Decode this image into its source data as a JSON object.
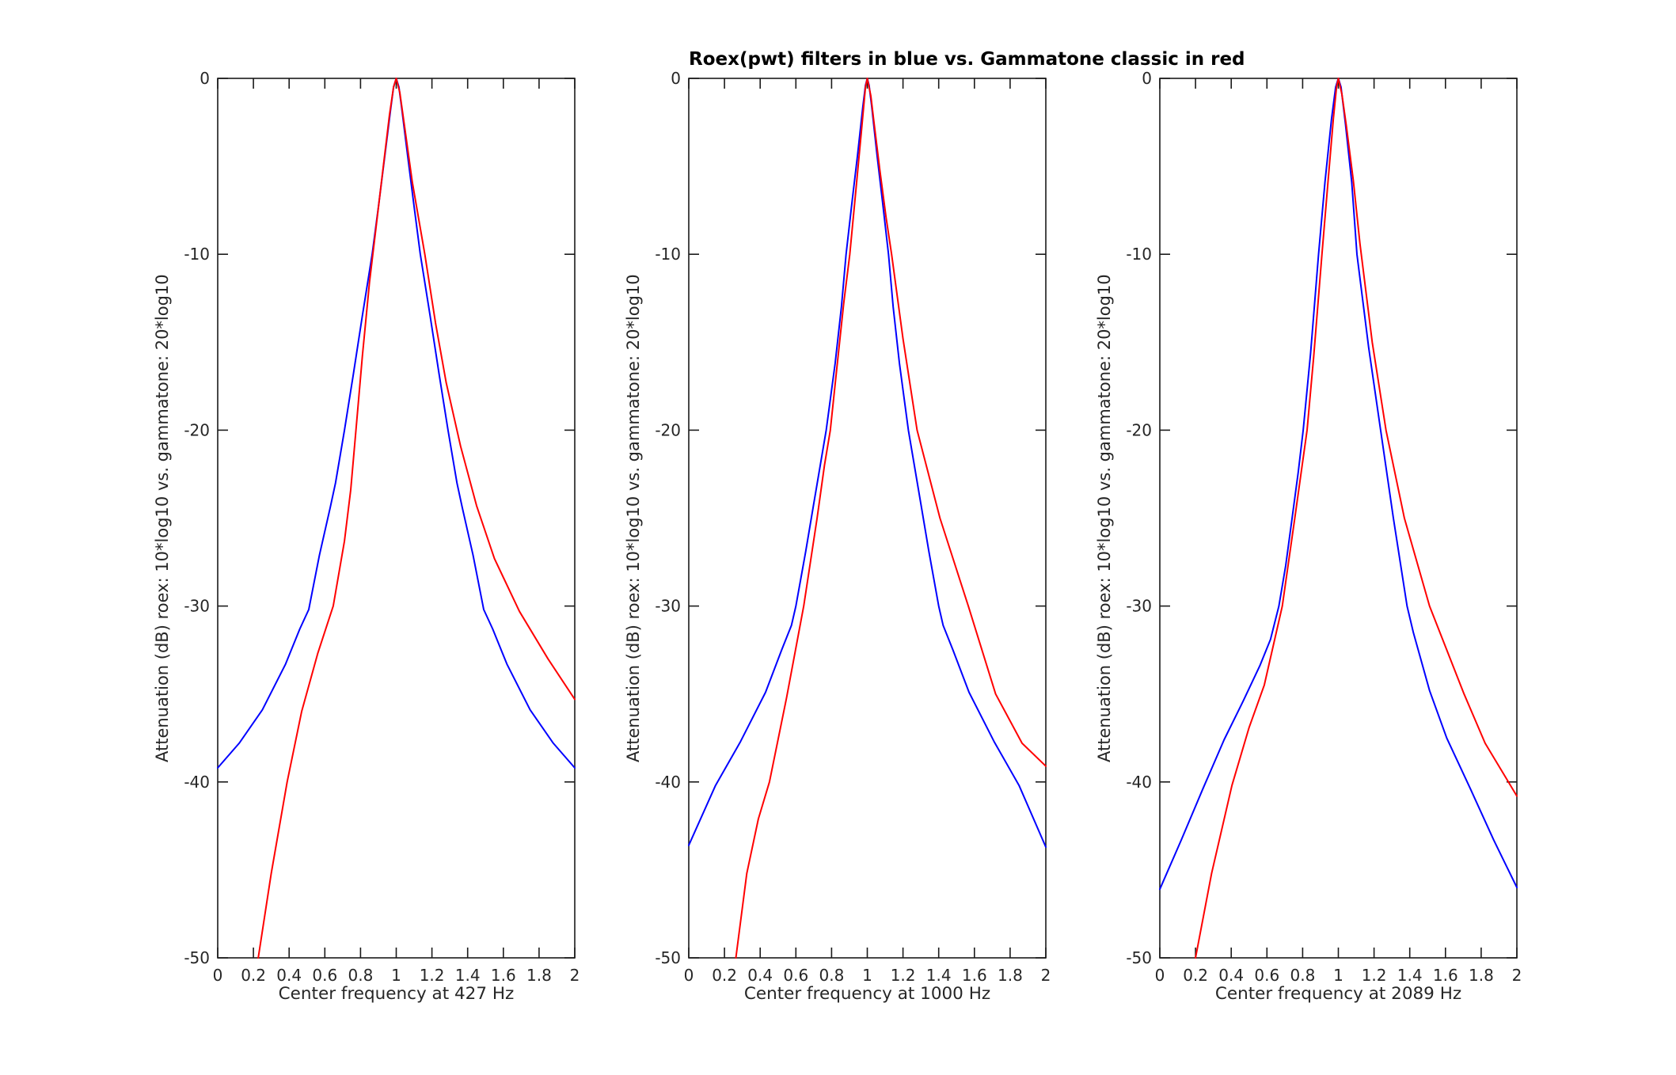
{
  "chart_data": {
    "type": "line",
    "title": "Roex(pwt) filters in blue vs. Gammatone classic in red",
    "ylabel": "Attenuation (dB) roex: 10*log10 vs. gammatone: 20*log10",
    "xlim": [
      0,
      2
    ],
    "ylim": [
      -50,
      0
    ],
    "grid": false,
    "legend": "none (series identified by color in title)",
    "xticks": {
      "values": [
        0,
        0.2,
        0.4,
        0.6,
        0.8,
        1,
        1.2,
        1.4,
        1.6,
        1.8,
        2
      ],
      "labels": [
        "0",
        "0.2",
        "0.4",
        "0.6",
        "0.8",
        "1",
        "1.2",
        "1.4",
        "1.6",
        "1.8",
        "2"
      ]
    },
    "yticks": {
      "values": [
        0,
        -10,
        -20,
        -30,
        -40,
        -50
      ],
      "labels": [
        "0",
        "-10",
        "-20",
        "-30",
        "-40",
        "-50"
      ]
    },
    "colors": {
      "roex_blue": "#0000ff",
      "gammatone_red": "#ff0000",
      "axis": "#1a1a1a",
      "text": "#262626"
    },
    "panels": [
      {
        "name": "subplot-427hz",
        "center_frequency_hz": 427,
        "xlabel": "Center frequency at 427 Hz",
        "series": [
          {
            "name": "roex(pwt)",
            "color": "#0000ff",
            "points": [
              [
                0,
                -39.2
              ],
              [
                0.12,
                -37.8
              ],
              [
                0.25,
                -35.9
              ],
              [
                0.38,
                -33.3
              ],
              [
                0.46,
                -31.3
              ],
              [
                0.51,
                -30.2
              ],
              [
                0.57,
                -27.1
              ],
              [
                0.63,
                -24.4
              ],
              [
                0.66,
                -23
              ],
              [
                0.71,
                -20
              ],
              [
                0.76,
                -16.8
              ],
              [
                0.81,
                -13.5
              ],
              [
                0.865,
                -10
              ],
              [
                0.9,
                -7.3
              ],
              [
                0.935,
                -4.5
              ],
              [
                0.968,
                -1.8
              ],
              [
                0.985,
                -0.5
              ],
              [
                1,
                0
              ],
              [
                1.015,
                -0.5
              ],
              [
                1.032,
                -1.8
              ],
              [
                1.065,
                -4.5
              ],
              [
                1.1,
                -7.3
              ],
              [
                1.135,
                -10
              ],
              [
                1.19,
                -13.5
              ],
              [
                1.24,
                -16.8
              ],
              [
                1.29,
                -20
              ],
              [
                1.34,
                -23
              ],
              [
                1.37,
                -24.4
              ],
              [
                1.43,
                -27.1
              ],
              [
                1.49,
                -30.2
              ],
              [
                1.54,
                -31.3
              ],
              [
                1.62,
                -33.3
              ],
              [
                1.75,
                -35.9
              ],
              [
                1.88,
                -37.8
              ],
              [
                2,
                -39.2
              ]
            ]
          },
          {
            "name": "gammatone classic",
            "color": "#ff0000",
            "points": [
              [
                0.227,
                -50
              ],
              [
                0.3,
                -45.2
              ],
              [
                0.389,
                -40
              ],
              [
                0.47,
                -36
              ],
              [
                0.56,
                -32.7
              ],
              [
                0.647,
                -30
              ],
              [
                0.71,
                -26.3
              ],
              [
                0.745,
                -23.4
              ],
              [
                0.775,
                -19.9
              ],
              [
                0.81,
                -15.8
              ],
              [
                0.85,
                -11.6
              ],
              [
                0.89,
                -8.2
              ],
              [
                0.93,
                -4.8
              ],
              [
                0.962,
                -2.1
              ],
              [
                0.985,
                -0.5
              ],
              [
                1,
                0
              ],
              [
                1.02,
                -0.8
              ],
              [
                1.045,
                -2.6
              ],
              [
                1.09,
                -5.9
              ],
              [
                1.16,
                -10
              ],
              [
                1.22,
                -13.9
              ],
              [
                1.28,
                -17.3
              ],
              [
                1.36,
                -20.9
              ],
              [
                1.45,
                -24.3
              ],
              [
                1.55,
                -27.3
              ],
              [
                1.69,
                -30.3
              ],
              [
                1.85,
                -33
              ],
              [
                2,
                -35.3
              ]
            ]
          }
        ]
      },
      {
        "name": "subplot-1000hz",
        "center_frequency_hz": 1000,
        "xlabel": "Center frequency at 1000 Hz",
        "series": [
          {
            "name": "roex(pwt)",
            "color": "#0000ff",
            "points": [
              [
                0,
                -43.6
              ],
              [
                0.15,
                -40.2
              ],
              [
                0.29,
                -37.7
              ],
              [
                0.43,
                -34.9
              ],
              [
                0.52,
                -32.5
              ],
              [
                0.575,
                -31.1
              ],
              [
                0.6,
                -30
              ],
              [
                0.655,
                -26.9
              ],
              [
                0.7,
                -24.2
              ],
              [
                0.77,
                -20
              ],
              [
                0.82,
                -16.2
              ],
              [
                0.855,
                -13
              ],
              [
                0.881,
                -10
              ],
              [
                0.915,
                -7
              ],
              [
                0.945,
                -4.4
              ],
              [
                0.975,
                -1.6
              ],
              [
                0.99,
                -0.4
              ],
              [
                1,
                0
              ],
              [
                1.01,
                -0.4
              ],
              [
                1.025,
                -1.6
              ],
              [
                1.055,
                -4.4
              ],
              [
                1.085,
                -7
              ],
              [
                1.119,
                -10
              ],
              [
                1.145,
                -13
              ],
              [
                1.18,
                -16.2
              ],
              [
                1.23,
                -20
              ],
              [
                1.3,
                -24.2
              ],
              [
                1.345,
                -26.9
              ],
              [
                1.4,
                -30
              ],
              [
                1.425,
                -31.1
              ],
              [
                1.48,
                -32.5
              ],
              [
                1.57,
                -34.9
              ],
              [
                1.71,
                -37.7
              ],
              [
                1.85,
                -40.2
              ],
              [
                2,
                -43.7
              ]
            ]
          },
          {
            "name": "gammatone classic",
            "color": "#ff0000",
            "points": [
              [
                0.264,
                -50
              ],
              [
                0.325,
                -45.2
              ],
              [
                0.39,
                -42.1
              ],
              [
                0.452,
                -40
              ],
              [
                0.548,
                -35.2
              ],
              [
                0.644,
                -30
              ],
              [
                0.719,
                -25
              ],
              [
                0.76,
                -22
              ],
              [
                0.793,
                -20
              ],
              [
                0.83,
                -16.4
              ],
              [
                0.868,
                -12.8
              ],
              [
                0.902,
                -10
              ],
              [
                0.935,
                -6.5
              ],
              [
                0.968,
                -2.9
              ],
              [
                0.99,
                -0.5
              ],
              [
                1,
                0
              ],
              [
                1.02,
                -1
              ],
              [
                1.035,
                -2.3
              ],
              [
                1.07,
                -5.2
              ],
              [
                1.105,
                -7.9
              ],
              [
                1.136,
                -10
              ],
              [
                1.2,
                -14.8
              ],
              [
                1.279,
                -20
              ],
              [
                1.407,
                -25
              ],
              [
                1.566,
                -30
              ],
              [
                1.719,
                -35
              ],
              [
                1.867,
                -37.8
              ],
              [
                2,
                -39.1
              ]
            ]
          }
        ]
      },
      {
        "name": "subplot-2089hz",
        "center_frequency_hz": 2089,
        "xlabel": "Center frequency at 2089 Hz",
        "series": [
          {
            "name": "roex(pwt)",
            "color": "#0000ff",
            "points": [
              [
                0,
                -46.1
              ],
              [
                0.12,
                -43.3
              ],
              [
                0.241,
                -40.4
              ],
              [
                0.36,
                -37.6
              ],
              [
                0.467,
                -35.4
              ],
              [
                0.56,
                -33.4
              ],
              [
                0.62,
                -31.9
              ],
              [
                0.667,
                -30
              ],
              [
                0.705,
                -27.7
              ],
              [
                0.741,
                -25
              ],
              [
                0.775,
                -22.4
              ],
              [
                0.803,
                -20
              ],
              [
                0.845,
                -15.6
              ],
              [
                0.889,
                -10
              ],
              [
                0.925,
                -5.9
              ],
              [
                0.962,
                -2.3
              ],
              [
                0.985,
                -0.5
              ],
              [
                1,
                0
              ],
              [
                1.015,
                -0.5
              ],
              [
                1.04,
                -2.6
              ],
              [
                1.075,
                -5.9
              ],
              [
                1.104,
                -10
              ],
              [
                1.17,
                -15.3
              ],
              [
                1.237,
                -20
              ],
              [
                1.308,
                -25
              ],
              [
                1.385,
                -30
              ],
              [
                1.42,
                -31.5
              ],
              [
                1.511,
                -34.8
              ],
              [
                1.607,
                -37.5
              ],
              [
                1.74,
                -40.4
              ],
              [
                1.87,
                -43.3
              ],
              [
                2,
                -46
              ]
            ]
          },
          {
            "name": "gammatone classic",
            "color": "#ff0000",
            "points": [
              [
                0.2,
                -50
              ],
              [
                0.29,
                -45.2
              ],
              [
                0.404,
                -40.2
              ],
              [
                0.5,
                -36.9
              ],
              [
                0.585,
                -34.5
              ],
              [
                0.686,
                -30
              ],
              [
                0.756,
                -25
              ],
              [
                0.825,
                -20
              ],
              [
                0.862,
                -15.8
              ],
              [
                0.908,
                -10
              ],
              [
                0.942,
                -5.9
              ],
              [
                0.972,
                -2.3
              ],
              [
                0.99,
                -0.5
              ],
              [
                1,
                0
              ],
              [
                1.02,
                -0.9
              ],
              [
                1.045,
                -2.7
              ],
              [
                1.084,
                -5.8
              ],
              [
                1.121,
                -9.4
              ],
              [
                1.19,
                -15
              ],
              [
                1.267,
                -20
              ],
              [
                1.37,
                -25
              ],
              [
                1.511,
                -30
              ],
              [
                1.704,
                -35
              ],
              [
                1.822,
                -37.8
              ],
              [
                2,
                -40.8
              ]
            ]
          }
        ]
      }
    ]
  }
}
